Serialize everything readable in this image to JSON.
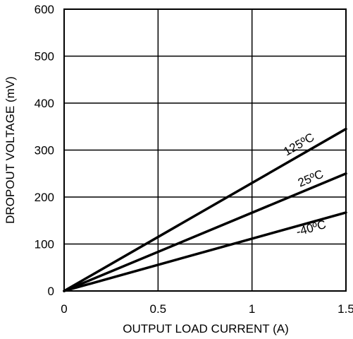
{
  "chart_data": {
    "type": "line",
    "title": "",
    "xlabel": "OUTPUT LOAD CURRENT (A)",
    "ylabel": "DROPOUT VOLTAGE (mV)",
    "xlim": [
      0,
      1.5
    ],
    "ylim": [
      0,
      600
    ],
    "xticks": [
      0,
      0.5,
      1,
      1.5
    ],
    "xtick_labels": [
      "0",
      "0.5",
      "1",
      "1.5"
    ],
    "yticks": [
      0,
      100,
      200,
      300,
      400,
      500,
      600
    ],
    "ytick_labels": [
      "0",
      "100",
      "200",
      "300",
      "400",
      "500",
      "600"
    ],
    "grid": true,
    "line_color": "#000000",
    "series": [
      {
        "name": "125ºC",
        "x": [
          0,
          1.5
        ],
        "y": [
          0,
          345
        ]
      },
      {
        "name": "25ºC",
        "x": [
          0,
          1.5
        ],
        "y": [
          0,
          250
        ]
      },
      {
        "name": "-40ºC",
        "x": [
          0,
          1.5
        ],
        "y": [
          0,
          167
        ]
      }
    ]
  }
}
